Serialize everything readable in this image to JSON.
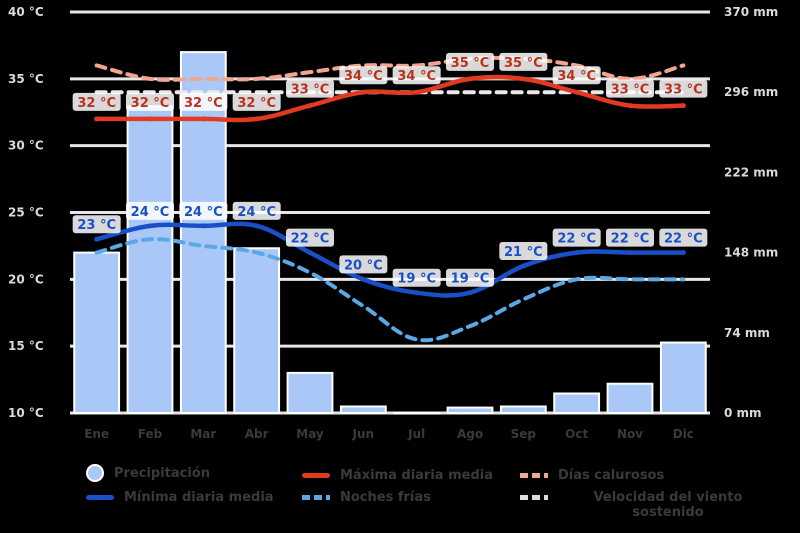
{
  "chart_data": {
    "type": "bar+line",
    "categories": [
      "Ene",
      "Feb",
      "Mar",
      "Abr",
      "May",
      "Jun",
      "Jul",
      "Ago",
      "Sep",
      "Oct",
      "Nov",
      "Dic"
    ],
    "left_axis": {
      "ticks": [
        "10 °C",
        "15 °C",
        "20 °C",
        "25 °C",
        "30 °C",
        "35 °C",
        "40 °C"
      ],
      "ylim": [
        10,
        40
      ]
    },
    "right_axis": {
      "ticks": [
        "0 mm",
        "74 mm",
        "148 mm",
        "222 mm",
        "296 mm",
        "370 mm"
      ],
      "ylim": [
        0,
        370
      ]
    },
    "series": [
      {
        "name": "Precipitación",
        "type": "bar",
        "axis": "right",
        "color": "#a9c8f7",
        "values": [
          148,
          283,
          333,
          152,
          37,
          6,
          0,
          5,
          6,
          18,
          27,
          65
        ]
      },
      {
        "name": "Máxima diaria media",
        "type": "line",
        "axis": "left",
        "color": "#e23a20",
        "values": [
          32,
          32,
          32,
          32,
          33,
          34,
          34,
          35,
          35,
          34,
          33,
          33
        ],
        "labels": [
          "32 °C",
          "32 °C",
          "32 °C",
          "32 °C",
          "33 °C",
          "34 °C",
          "34 °C",
          "35 °C",
          "35 °C",
          "34 °C",
          "33 °C",
          "33 °C"
        ]
      },
      {
        "name": "Mínima diaria media",
        "type": "line",
        "axis": "left",
        "color": "#1a4fc7",
        "values": [
          23,
          24,
          24,
          24,
          22,
          20,
          19,
          19,
          21,
          22,
          22,
          22
        ],
        "labels": [
          "23 °C",
          "24 °C",
          "24 °C",
          "24 °C",
          "22 °C",
          "20 °C",
          "19 °C",
          "19 °C",
          "21 °C",
          "22 °C",
          "22 °C",
          "22 °C"
        ]
      },
      {
        "name": "Días calurosos",
        "type": "line",
        "axis": "left",
        "style": "dashed",
        "color": "#f2a58f",
        "values": [
          36,
          35,
          35,
          35,
          35.5,
          36,
          36,
          36.5,
          36.5,
          36,
          35,
          36
        ]
      },
      {
        "name": "Noches frías",
        "type": "line",
        "axis": "left",
        "style": "dashed",
        "color": "#5aa8e6",
        "values": [
          22,
          23,
          22.5,
          22,
          20.5,
          18,
          15.5,
          16.5,
          18.5,
          20,
          20,
          20
        ]
      },
      {
        "name": "Velocidad del viento sostenido",
        "type": "line",
        "axis": "right",
        "style": "dashed",
        "color": "#eaeaea",
        "values": [
          296,
          296,
          296,
          296,
          296,
          296,
          296,
          296,
          296,
          296,
          296,
          296
        ]
      }
    ],
    "grid": true,
    "legend_position": "bottom"
  },
  "legend": {
    "items": [
      {
        "label": "Precipitación",
        "kind": "circle",
        "color": "#a9c8f7"
      },
      {
        "label": "Máxima diaria media",
        "kind": "line",
        "color": "#e23a20"
      },
      {
        "label": "Días calurosos",
        "kind": "dashed",
        "color": "#f2a58f"
      },
      {
        "label": "Mínima diaria media",
        "kind": "line",
        "color": "#1a4fc7"
      },
      {
        "label": "Noches frías",
        "kind": "dashed",
        "color": "#5aa8e6"
      },
      {
        "label": "Velocidad del viento sostenido",
        "kind": "dashed",
        "color": "#dedede"
      }
    ]
  }
}
